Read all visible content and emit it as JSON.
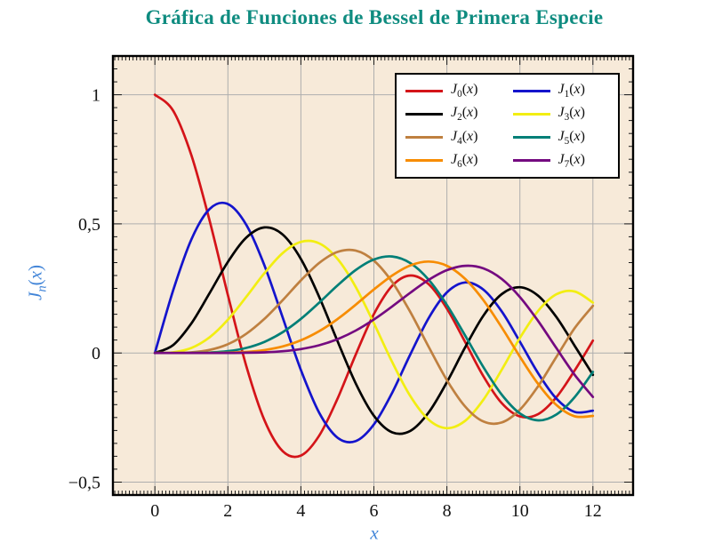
{
  "chart_data": {
    "type": "line",
    "title": "Gráfica de Funciones de Bessel de Primera Especie",
    "xlabel": "x",
    "ylabel": "J_n(x)",
    "xlim": [
      -1.15,
      13.1
    ],
    "ylim": [
      -0.55,
      1.15
    ],
    "x_ticks": {
      "values": [
        0,
        2,
        4,
        6,
        8,
        10,
        12
      ],
      "labels": [
        "0",
        "2",
        "4",
        "6",
        "8",
        "10",
        "12"
      ]
    },
    "y_ticks": {
      "values": [
        -0.5,
        0,
        0.5,
        1
      ],
      "labels": [
        "−0,5",
        "0",
        "0,5",
        "1"
      ]
    },
    "x_minor_step": 0.1,
    "y_minor_step": 0.05,
    "grid": true,
    "legend_position": "top-right",
    "style": {
      "title_color": "#0f8c80",
      "axis_label_color": "#4285d8",
      "plot_bg": "#f7ead9",
      "grid_color": "#aeaeae",
      "frame_color": "#000000",
      "tick_color": "#1a1a1a",
      "tick_label_color": "#111111"
    },
    "x": [
      0,
      0.5,
      1,
      1.5,
      2,
      2.5,
      3,
      3.5,
      4,
      4.5,
      5,
      5.5,
      6,
      6.5,
      7,
      7.5,
      8,
      8.5,
      9,
      9.5,
      10,
      10.5,
      11,
      11.5,
      12
    ],
    "series": [
      {
        "name": "J_0(x)",
        "color": "#d41419",
        "values": [
          1,
          0.9385,
          0.7652,
          0.5118,
          0.2239,
          -0.0484,
          -0.2601,
          -0.3801,
          -0.3971,
          -0.3205,
          -0.1776,
          -0.0068,
          0.1506,
          0.2601,
          0.3001,
          0.2663,
          0.1717,
          0.0419,
          -0.0903,
          -0.1939,
          -0.2459,
          -0.2366,
          -0.1712,
          -0.0677,
          0.0477
        ]
      },
      {
        "name": "J_1(x)",
        "color": "#1414cc",
        "values": [
          0,
          0.2423,
          0.4401,
          0.5579,
          0.5767,
          0.4971,
          0.3391,
          0.1374,
          -0.066,
          -0.2311,
          -0.3276,
          -0.3414,
          -0.2767,
          -0.1538,
          -0.0047,
          0.1352,
          0.2346,
          0.2731,
          0.2453,
          0.1613,
          0.0435,
          -0.0789,
          -0.1768,
          -0.2284,
          -0.2234
        ]
      },
      {
        "name": "J_2(x)",
        "color": "#000000",
        "values": [
          0,
          0.0306,
          0.1149,
          0.2321,
          0.3528,
          0.4461,
          0.4861,
          0.4586,
          0.3641,
          0.2178,
          0.0466,
          -0.1173,
          -0.2429,
          -0.3074,
          -0.3014,
          -0.2303,
          -0.113,
          0.0223,
          0.1448,
          0.2279,
          0.2546,
          0.2216,
          0.139,
          0.0279,
          -0.0849
        ]
      },
      {
        "name": "J_3(x)",
        "color": "#f2ee12",
        "values": [
          0,
          0.0026,
          0.0196,
          0.061,
          0.1289,
          0.2166,
          0.3091,
          0.3868,
          0.4302,
          0.4247,
          0.3648,
          0.2561,
          0.1148,
          -0.0353,
          -0.1676,
          -0.2581,
          -0.2911,
          -0.2626,
          -0.1809,
          -0.0653,
          0.0584,
          0.1633,
          0.2273,
          0.2381,
          0.1951
        ]
      },
      {
        "name": "J_4(x)",
        "color": "#bf8040",
        "values": [
          0,
          0.0002,
          0.0025,
          0.0118,
          0.034,
          0.0738,
          0.132,
          0.2044,
          0.2811,
          0.3484,
          0.3912,
          0.3967,
          0.3576,
          0.2748,
          0.1578,
          0.0238,
          -0.1054,
          -0.2077,
          -0.2655,
          -0.2691,
          -0.2196,
          -0.1283,
          -0.015,
          0.0963,
          0.1825
        ]
      },
      {
        "name": "J_5(x)",
        "color": "#007f77",
        "values": [
          0,
          0,
          0.0002,
          0.0018,
          0.007,
          0.0195,
          0.043,
          0.0804,
          0.1321,
          0.1947,
          0.2611,
          0.3209,
          0.3621,
          0.3736,
          0.3479,
          0.2835,
          0.1858,
          0.0671,
          -0.055,
          -0.1613,
          -0.2341,
          -0.2611,
          -0.2383,
          -0.1711,
          -0.0735
        ]
      },
      {
        "name": "J_6(x)",
        "color": "#f78c00",
        "values": [
          0,
          0,
          0,
          0.0002,
          0.0012,
          0.0042,
          0.0114,
          0.0254,
          0.0491,
          0.0843,
          0.131,
          0.1868,
          0.2458,
          0.2999,
          0.3392,
          0.3541,
          0.3376,
          0.2867,
          0.2043,
          0.0993,
          -0.0145,
          -0.1203,
          -0.2016,
          -0.2451,
          -0.2437
        ]
      },
      {
        "name": "J_7(x)",
        "color": "#740a80",
        "values": [
          0,
          0,
          0,
          0,
          0.0002,
          0.0008,
          0.0025,
          0.0067,
          0.0152,
          0.03,
          0.0534,
          0.0866,
          0.1296,
          0.1801,
          0.2336,
          0.2832,
          0.3206,
          0.3376,
          0.3275,
          0.2868,
          0.2167,
          0.1236,
          0.0184,
          -0.0846,
          -0.1703
        ]
      }
    ]
  }
}
